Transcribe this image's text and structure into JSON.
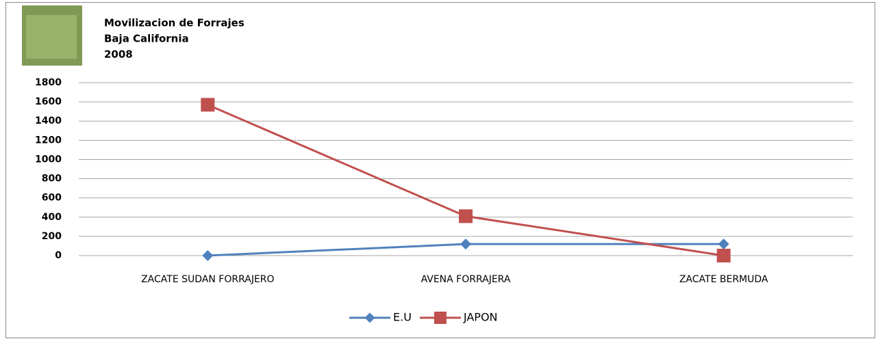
{
  "chart_data": {
    "type": "line",
    "title_lines": [
      "Movilizacion de Forrajes",
      "Baja California",
      "2008"
    ],
    "categories": [
      "ZACATE SUDAN FORRAJERO",
      "AVENA FORRAJERA",
      "ZACATE BERMUDA"
    ],
    "series": [
      {
        "name": "E.U",
        "color": "#4f81bd",
        "marker": "diamond",
        "values": [
          0,
          120,
          120
        ]
      },
      {
        "name": "JAPON",
        "color": "#c0504d",
        "marker": "square",
        "values": [
          1570,
          410,
          0
        ]
      }
    ],
    "ylim": [
      0,
      1800
    ],
    "yticks": [
      0,
      200,
      400,
      600,
      800,
      1000,
      1200,
      1400,
      1600,
      1800
    ],
    "grid": true,
    "legend": "bottom"
  }
}
